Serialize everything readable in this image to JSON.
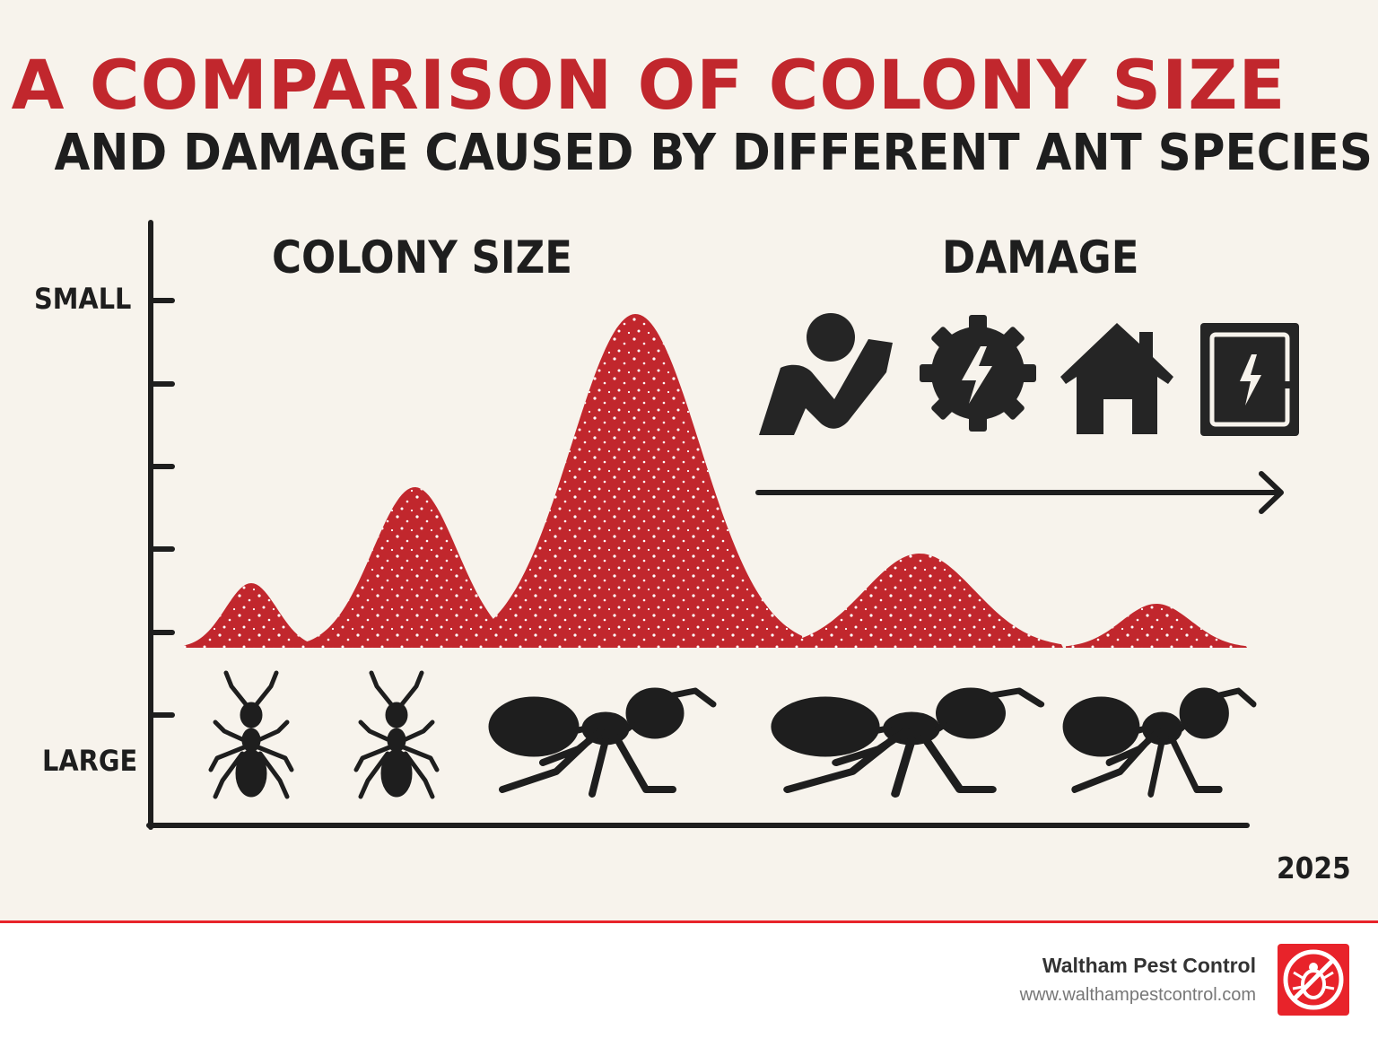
{
  "header": {
    "title": "A COMPARISON OF COLONY SIZE",
    "subtitle": "AND DAMAGE CAUSED BY DIFFERENT ANT SPECIES"
  },
  "diagram": {
    "colony_size_label": "COLONY SIZE",
    "damage_label": "DAMAGE",
    "y_axis_top_label": "SMALL",
    "y_axis_bottom_label": "LARGE",
    "year": "2025",
    "damage_icons": [
      "person-injury-icon",
      "gear-electric-icon",
      "house-icon",
      "electrical-panel-icon"
    ],
    "colors": {
      "accent": "#c1272d",
      "ink": "#1e1e1e",
      "background": "#f7f3ec"
    }
  },
  "footer": {
    "brand": "Waltham Pest Control",
    "url": "www.walthampestcontrol.com",
    "logo_icon": "no-bugs-icon",
    "accent": "#e8232a"
  }
}
